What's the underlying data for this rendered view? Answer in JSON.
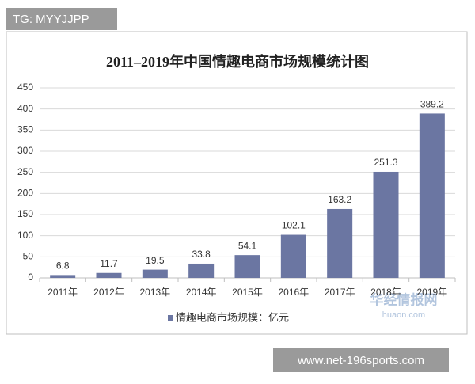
{
  "header_label": "TG: MYYJJPP",
  "footer_label": "www.net-196sports.com",
  "watermark": [
    "华经情报网",
    "huaon.com"
  ],
  "chart_data": {
    "type": "bar",
    "title": "2011–2019年中国情趣电商市场规模统计图",
    "categories": [
      "2011年",
      "2012年",
      "2013年",
      "2014年",
      "2015年",
      "2016年",
      "2017年",
      "2018年",
      "2019年"
    ],
    "series": [
      {
        "name": "情趣电商市场规模：亿元",
        "color": "#6b76a2",
        "values": [
          6.8,
          11.7,
          19.5,
          33.8,
          54.1,
          102.1,
          163.2,
          251.3,
          389.2
        ]
      }
    ],
    "ylim": [
      0,
      450
    ],
    "yticks": [
      0,
      50,
      100,
      150,
      200,
      250,
      300,
      350,
      400,
      450
    ],
    "grid": true,
    "legend": "bottom",
    "data_labels": true
  }
}
